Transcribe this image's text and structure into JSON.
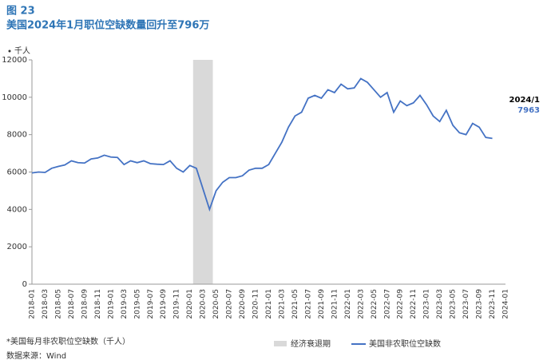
{
  "chart_data": {
    "type": "line",
    "title": "图 23",
    "subtitle": "美国2024年1月职位空缺数量回升至796万",
    "y_unit": "千人",
    "categories": [
      "2018-01",
      null,
      "2018-03",
      null,
      "2018-05",
      null,
      "2018-07",
      null,
      "2018-09",
      null,
      "2018-11",
      null,
      "2019-01",
      null,
      "2019-03",
      null,
      "2019-05",
      null,
      "2019-07",
      null,
      "2019-09",
      null,
      "2019-11",
      null,
      "2020-01",
      null,
      "2020-03",
      null,
      "2020-05",
      null,
      "2020-07",
      null,
      "2020-09",
      null,
      "2020-11",
      null,
      "2021-01",
      null,
      "2021-03",
      null,
      "2021-05",
      null,
      "2021-07",
      null,
      "2021-09",
      null,
      "2021-11",
      null,
      "2022-01",
      null,
      "2022-03",
      null,
      "2022-05",
      null,
      "2022-07",
      null,
      "2022-09",
      null,
      "2022-11",
      null,
      "2023-01",
      null,
      "2023-03",
      null,
      "2023-05",
      null,
      "2023-07",
      null,
      "2023-09",
      null,
      "2023-11",
      null,
      "2024-01"
    ],
    "series": [
      {
        "name": "美国非农职位空缺数",
        "color": "#4472c4",
        "values": [
          5950,
          6000,
          5980,
          6200,
          6300,
          6380,
          6600,
          6500,
          6480,
          6700,
          6750,
          6900,
          6800,
          6780,
          6400,
          6600,
          6500,
          6600,
          6450,
          6420,
          6400,
          6600,
          6200,
          6000,
          6350,
          6200,
          5100,
          4000,
          5000,
          5450,
          5700,
          5700,
          5800,
          6100,
          6200,
          6200,
          6400,
          7000,
          7600,
          8400,
          9000,
          9200,
          9950,
          10100,
          9950,
          10400,
          10250,
          10700,
          10450,
          10500,
          11000,
          10800,
          10400,
          10000,
          10250,
          9200,
          9800,
          9550,
          9700,
          10100,
          9600,
          9000,
          8700,
          9300,
          8500,
          8100,
          8000,
          8600,
          8400,
          7850,
          7800,
          null,
          null
        ]
      }
    ],
    "recession": {
      "name": "经济衰退期",
      "start": 25,
      "end": 27,
      "color": "#d9d9d9"
    },
    "ylim": [
      0,
      12000
    ],
    "yticks": [
      0,
      2000,
      4000,
      6000,
      8000,
      10000,
      12000
    ],
    "annotation": {
      "label": "2024/1",
      "value": 7963
    },
    "footnote": "*美国每月非农职位空缺数（千人）",
    "source": "数据来源：Wind"
  }
}
